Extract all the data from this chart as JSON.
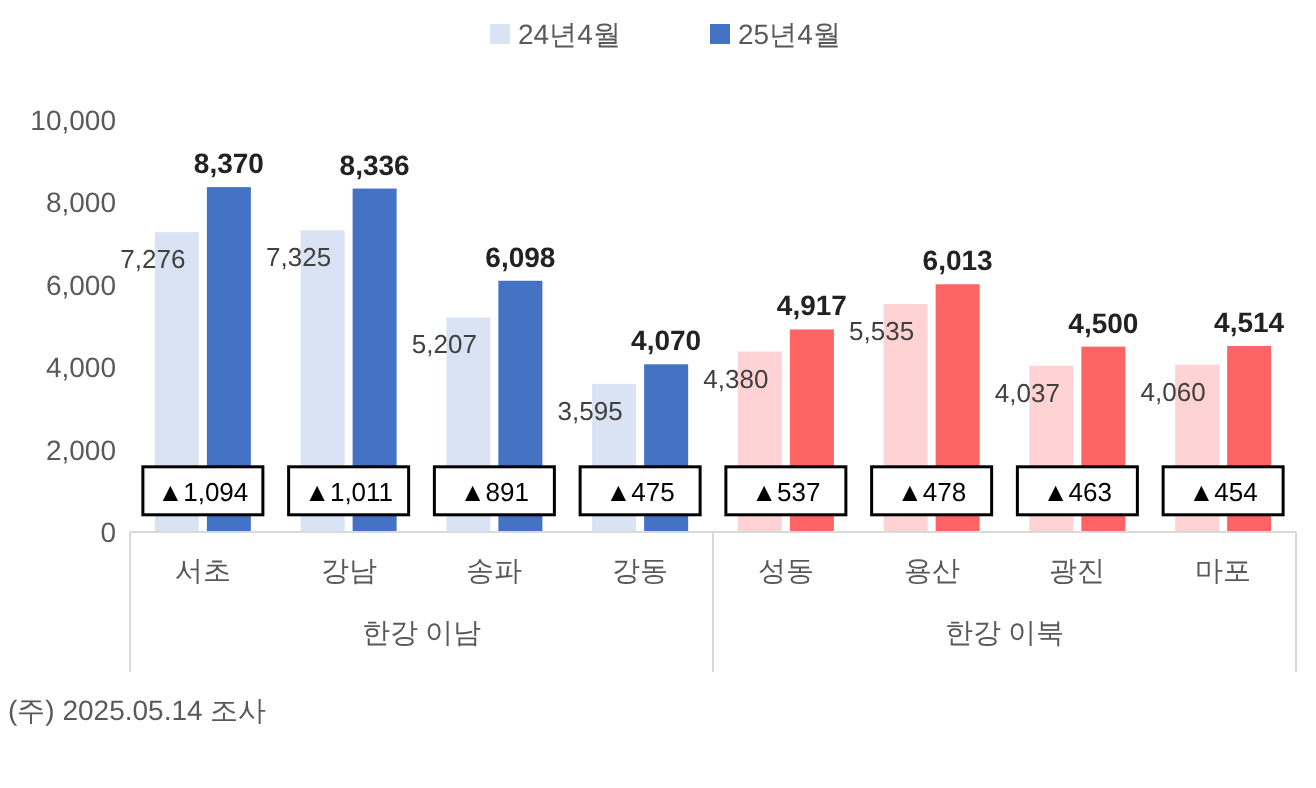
{
  "chart_data": {
    "type": "bar",
    "categories": [
      "서초",
      "강남",
      "송파",
      "강동",
      "성동",
      "용산",
      "광진",
      "마포"
    ],
    "series": [
      {
        "name": "24년4월",
        "color": "#dae3f3",
        "colors": [
          "#dae3f3",
          "#dae3f3",
          "#dae3f3",
          "#dae3f3",
          "#ffd3d3",
          "#ffd3d3",
          "#ffd3d3",
          "#ffd3d3"
        ],
        "values": [
          7276,
          7325,
          5207,
          3595,
          4380,
          5535,
          4037,
          4060
        ],
        "value_labels": [
          "7,276",
          "7,325",
          "5,207",
          "3,595",
          "4,380",
          "5,535",
          "4,037",
          "4,060"
        ]
      },
      {
        "name": "25년4월",
        "color": "#4472c4",
        "colors": [
          "#4472c4",
          "#4472c4",
          "#4472c4",
          "#4472c4",
          "#ff6464",
          "#ff6464",
          "#ff6464",
          "#ff6464"
        ],
        "values": [
          8370,
          8336,
          6098,
          4070,
          4917,
          6013,
          4500,
          4514
        ],
        "value_labels": [
          "8,370",
          "8,336",
          "6,098",
          "4,070",
          "4,917",
          "6,013",
          "4,500",
          "4,514"
        ]
      }
    ],
    "ylim": [
      0,
      10000
    ],
    "yticks": [
      {
        "value": 0,
        "label": "0"
      },
      {
        "value": 2000,
        "label": "2,000"
      },
      {
        "value": 4000,
        "label": "4,000"
      },
      {
        "value": 6000,
        "label": "6,000"
      },
      {
        "value": 8000,
        "label": "8,000"
      },
      {
        "value": 10000,
        "label": "10,000"
      }
    ],
    "grid": false,
    "legend": "top",
    "annotations": [
      {
        "text": "▲1,094",
        "x": "서초",
        "y": 1000
      },
      {
        "text": "▲1,011",
        "x": "강남",
        "y": 1000
      },
      {
        "text": "▲891",
        "x": "송파",
        "y": 1000
      },
      {
        "text": "▲475",
        "x": "강동",
        "y": 1000
      },
      {
        "text": "▲537",
        "x": "성동",
        "y": 1000
      },
      {
        "text": "▲478",
        "x": "용산",
        "y": 1000
      },
      {
        "text": "▲463",
        "x": "광진",
        "y": 1000
      },
      {
        "text": "▲454",
        "x": "마포",
        "y": 1000
      },
      "한강 이남",
      "한강 이북",
      "(주) 2025.05.14 조사"
    ]
  }
}
